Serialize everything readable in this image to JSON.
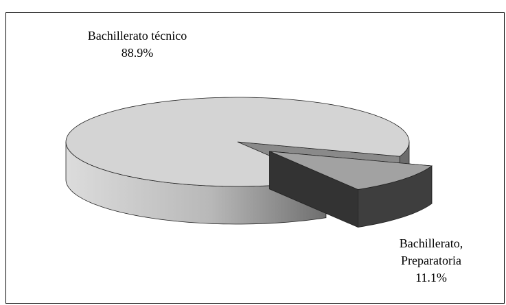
{
  "chart_data": {
    "type": "pie3d",
    "categories": [
      "Bachillerato técnico",
      "Bachillerato, Preparatoria"
    ],
    "values": [
      88.9,
      11.1
    ],
    "value_labels": [
      "88.9%",
      "11.1%"
    ],
    "colors": [
      "#d4d4d4",
      "#a2a2a2"
    ]
  }
}
